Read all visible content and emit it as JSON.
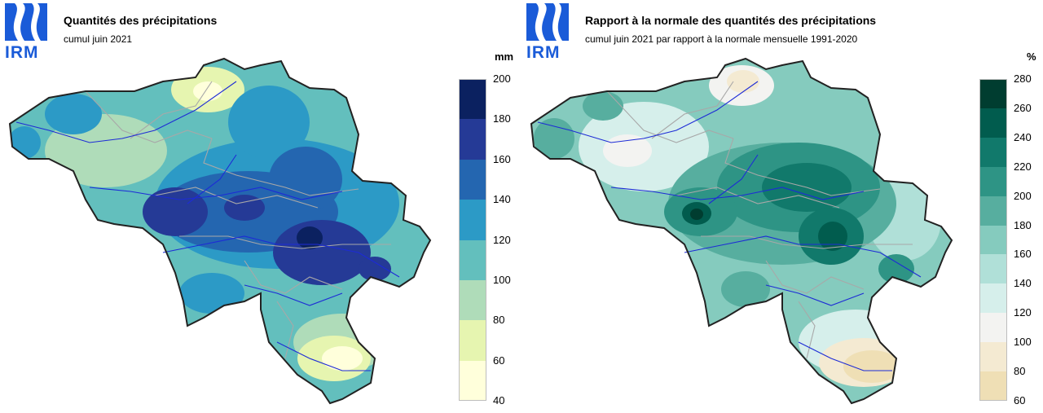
{
  "logo": {
    "text": "IRM",
    "color": "#1a5bd8"
  },
  "left_panel": {
    "title": "Quantités des précipitations",
    "subtitle": "cumul juin 2021",
    "unit": "mm",
    "legend": {
      "ticks": [
        "200",
        "180",
        "160",
        "140",
        "120",
        "100",
        "80",
        "60",
        "40"
      ],
      "bins": [
        {
          "from": 180,
          "to": 200,
          "color": "#0b2160"
        },
        {
          "from": 160,
          "to": 180,
          "color": "#253a96"
        },
        {
          "from": 140,
          "to": 160,
          "color": "#2466b0"
        },
        {
          "from": 120,
          "to": 140,
          "color": "#2c9ac6"
        },
        {
          "from": 100,
          "to": 120,
          "color": "#63bfbd"
        },
        {
          "from": 80,
          "to": 100,
          "color": "#afdcb9"
        },
        {
          "from": 60,
          "to": 80,
          "color": "#e6f5b0"
        },
        {
          "from": 40,
          "to": 60,
          "color": "#ffffdb"
        }
      ]
    }
  },
  "right_panel": {
    "title": "Rapport à la normale des quantités des précipitations",
    "subtitle": "cumul juin 2021 par rapport à la normale mensuelle 1991-2020",
    "unit": "%",
    "legend": {
      "ticks": [
        "280",
        "260",
        "240",
        "220",
        "200",
        "180",
        "160",
        "140",
        "120",
        "100",
        "80",
        "60"
      ],
      "bins": [
        {
          "from": 260,
          "to": 280,
          "color": "#003d30"
        },
        {
          "from": 240,
          "to": 260,
          "color": "#015c4e"
        },
        {
          "from": 220,
          "to": 240,
          "color": "#11796b"
        },
        {
          "from": 200,
          "to": 220,
          "color": "#2e9485"
        },
        {
          "from": 180,
          "to": 200,
          "color": "#57ae9f"
        },
        {
          "from": 160,
          "to": 180,
          "color": "#85cbbe"
        },
        {
          "from": 140,
          "to": 160,
          "color": "#b0e0d8"
        },
        {
          "from": 120,
          "to": 140,
          "color": "#d6efeb"
        },
        {
          "from": 100,
          "to": 120,
          "color": "#f3f3f1"
        },
        {
          "from": 80,
          "to": 100,
          "color": "#f4ead2"
        },
        {
          "from": 60,
          "to": 80,
          "color": "#efdfb5"
        }
      ]
    }
  },
  "colors": {
    "border": "#222222",
    "rivers": "#1d2bd6",
    "provinces": "#a8a8a8"
  }
}
